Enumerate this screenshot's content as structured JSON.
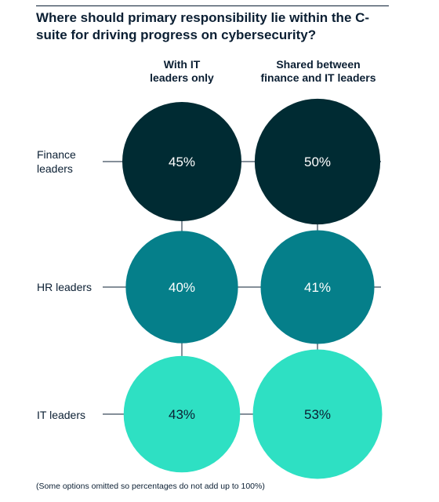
{
  "title": "Where should primary responsibility lie within the C-suite for driving progress on cybersecurity?",
  "footnote": "(Some options omitted so percentages do not add up to 100%)",
  "colors": {
    "finance": "#002b33",
    "hr": "#057f8a",
    "it": "#2ee0c3",
    "text_dark": "#0b1f33",
    "text_light": "#ffffff"
  },
  "chart_data": {
    "type": "bubble-matrix",
    "title": "Where should primary responsibility lie within the C-suite for driving progress on cybersecurity?",
    "columns": [
      "With IT\nleaders only",
      "Shared between\nfinance and IT leaders"
    ],
    "rows": [
      "Finance\nleaders",
      "HR leaders",
      "IT leaders"
    ],
    "values": [
      [
        45,
        50
      ],
      [
        40,
        41
      ],
      [
        43,
        53
      ]
    ],
    "value_labels": [
      [
        "45%",
        "50%"
      ],
      [
        "40%",
        "41%"
      ],
      [
        "43%",
        "53%"
      ]
    ],
    "unit": "%"
  }
}
